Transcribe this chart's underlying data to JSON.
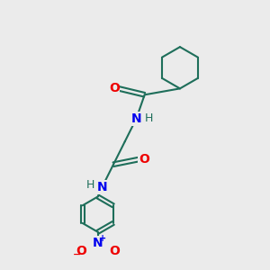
{
  "bg_color": "#ebebeb",
  "bond_color": "#1e6e5a",
  "bond_width": 1.5,
  "N_color": "#0000ee",
  "O_color": "#ee0000",
  "H_color": "#1e6e5a",
  "figsize": [
    3.0,
    3.0
  ],
  "dpi": 100,
  "xlim": [
    0,
    10
  ],
  "ylim": [
    0,
    10
  ]
}
